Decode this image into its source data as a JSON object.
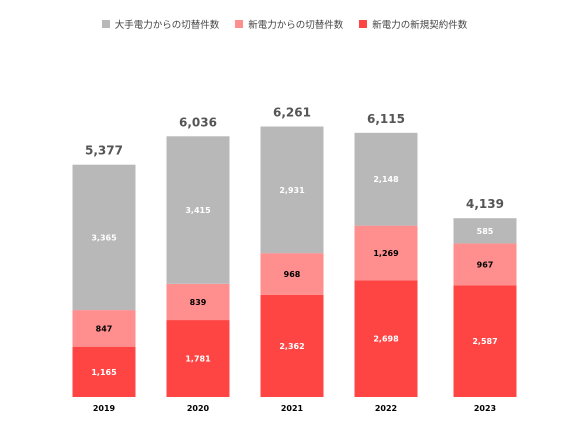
{
  "chart_data": {
    "type": "bar",
    "stacked": true,
    "categories": [
      "2019",
      "2020",
      "2021",
      "2022",
      "2023"
    ],
    "series": [
      {
        "name": "新電力の新規契約件数",
        "values": [
          1165,
          1781,
          2362,
          2698,
          2587
        ],
        "color": "#ff4444",
        "label_color": "#ffffff"
      },
      {
        "name": "新電力からの切替件数",
        "values": [
          847,
          839,
          968,
          1269,
          967
        ],
        "color": "#ff8f8f",
        "label_color": "#000000"
      },
      {
        "name": "大手電力からの切替件数",
        "values": [
          3365,
          3415,
          2931,
          2148,
          585
        ],
        "color": "#b8b8b8",
        "label_color": "#ffffff"
      }
    ],
    "value_labels": [
      [
        "1,165",
        "1,781",
        "2,362",
        "2,698",
        "2,587"
      ],
      [
        "847",
        "839",
        "968",
        "1,269",
        "967"
      ],
      [
        "3,365",
        "3,415",
        "2,931",
        "2,148",
        "585"
      ]
    ],
    "totals": [
      "5,377",
      "6,036",
      "6,261",
      "6,115",
      "4,139"
    ],
    "total_values": [
      5377,
      6036,
      6261,
      6115,
      4139
    ],
    "legend": {
      "position": "top",
      "items": [
        "大手電力からの切替件数",
        "新電力からの切替件数",
        "新電力の新規契約件数"
      ],
      "colors": [
        "#b8b8b8",
        "#ff8f8f",
        "#ff4444"
      ]
    },
    "ylim": [
      0,
      6500
    ],
    "grid": false,
    "title": "",
    "xlabel": "",
    "ylabel": ""
  }
}
